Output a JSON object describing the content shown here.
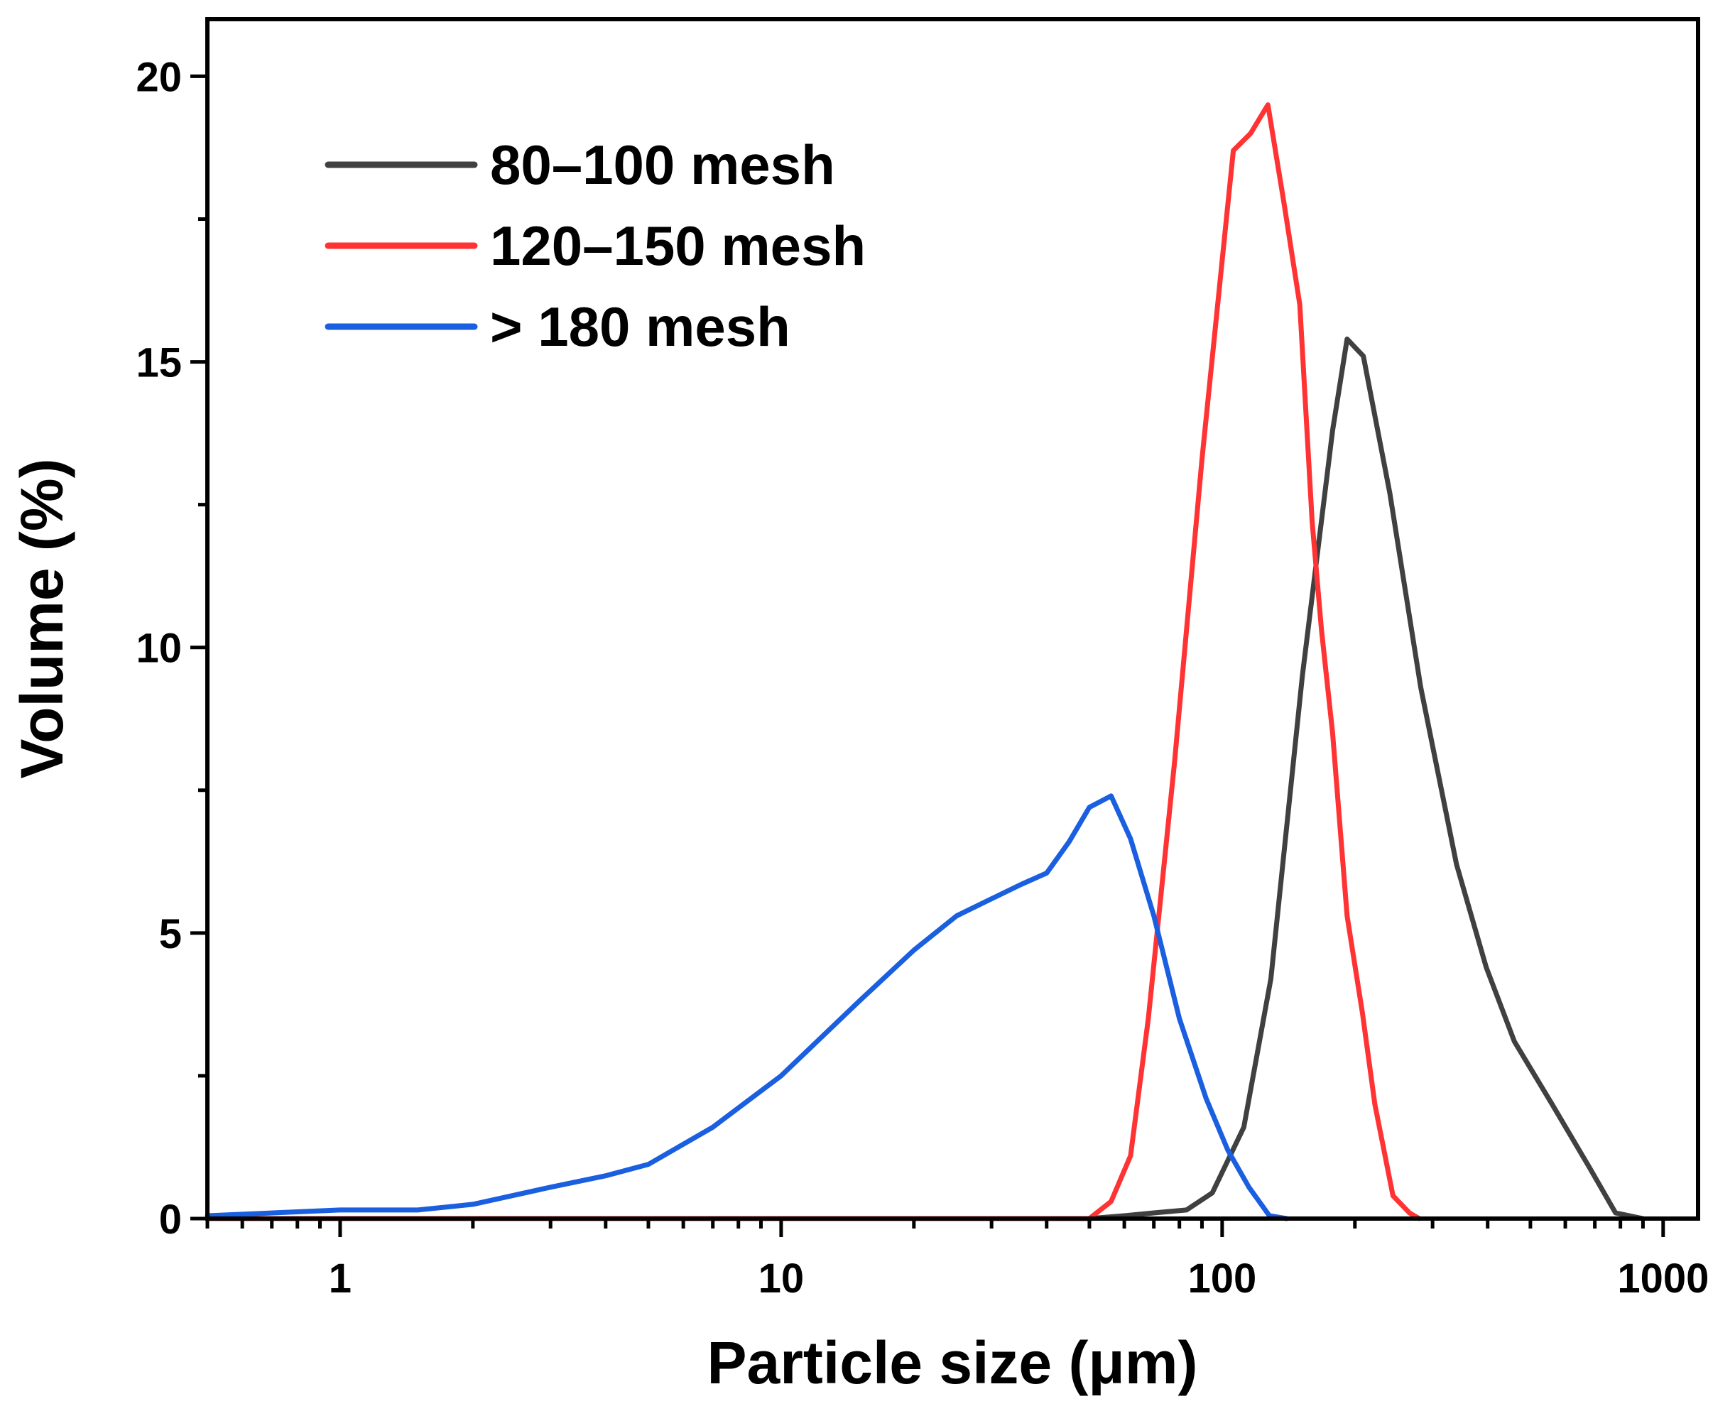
{
  "chart_data": {
    "type": "line",
    "title": "",
    "xlabel": "Particle size (μm)",
    "ylabel": "Volume (%)",
    "xscale": "log",
    "xlim": [
      0.5,
      1200
    ],
    "ylim": [
      0,
      21
    ],
    "x_ticks": [
      1,
      10,
      100,
      1000
    ],
    "x_tick_labels": [
      "1",
      "10",
      "100",
      "1000"
    ],
    "y_ticks": [
      0,
      5,
      10,
      15,
      20
    ],
    "y_tick_labels": [
      "0",
      "5",
      "10",
      "15",
      "20"
    ],
    "legend_position": "top-left",
    "series": [
      {
        "name": "80–100 mesh",
        "color": "#404040",
        "x": [
          0.5,
          50,
          60,
          70,
          83,
          95,
          112,
          129,
          152,
          178,
          192,
          209,
          240,
          282,
          340,
          397,
          460,
          560,
          680,
          780,
          900
        ],
        "y": [
          0,
          0,
          0.05,
          0.1,
          0.15,
          0.45,
          1.6,
          4.2,
          9.5,
          13.8,
          15.4,
          15.1,
          12.7,
          9.3,
          6.2,
          4.4,
          3.1,
          2.0,
          0.9,
          0.1,
          0
        ]
      },
      {
        "name": "120–150 mesh",
        "color": "#ff3333",
        "x": [
          0.5,
          50,
          56,
          62,
          68,
          78,
          90,
          106,
          116,
          127,
          138,
          150,
          160,
          168,
          178,
          192,
          208,
          222,
          244,
          266,
          280
        ],
        "y": [
          0,
          0,
          0.3,
          1.1,
          3.5,
          8.0,
          13.3,
          18.7,
          19.0,
          19.5,
          17.8,
          16.0,
          12.2,
          10.3,
          8.5,
          5.3,
          3.6,
          2.0,
          0.4,
          0.1,
          0
        ]
      },
      {
        "name": "> 180 mesh",
        "color": "#1a5fe0",
        "x": [
          0.5,
          1,
          1.5,
          2,
          3,
          4,
          5,
          7,
          10,
          15,
          20,
          25,
          30,
          35,
          40,
          45,
          50,
          56,
          62,
          70,
          80,
          92,
          103,
          115,
          128,
          140
        ],
        "y": [
          0.05,
          0.15,
          0.15,
          0.25,
          0.55,
          0.75,
          0.95,
          1.6,
          2.5,
          3.8,
          4.7,
          5.3,
          5.6,
          5.85,
          6.05,
          6.6,
          7.2,
          7.4,
          6.65,
          5.3,
          3.5,
          2.1,
          1.2,
          0.55,
          0.05,
          0
        ]
      }
    ]
  }
}
